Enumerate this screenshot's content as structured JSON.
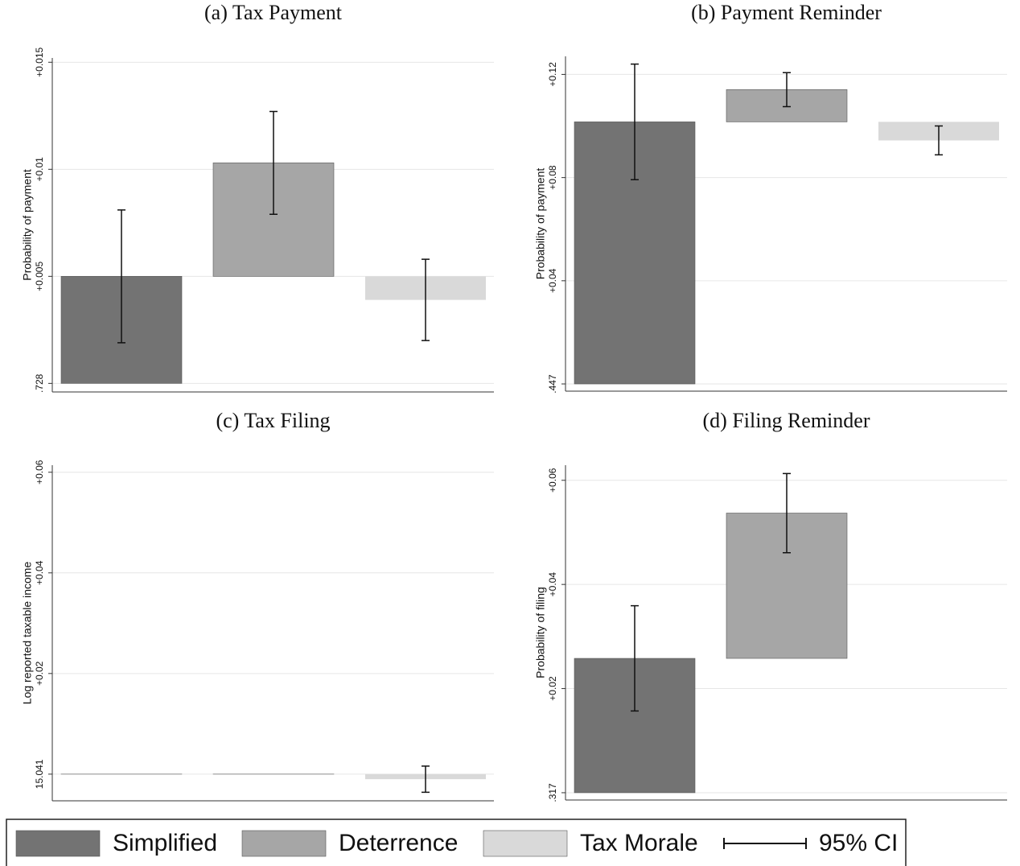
{
  "chart_data": [
    {
      "type": "bar",
      "title": "(a) Tax Payment",
      "y_label": "Probability of payment",
      "values": [
        0.005,
        0.0053,
        -0.0011
      ],
      "errors": [
        0.0031,
        0.0024,
        0.0019
      ],
      "ylim": [
        -0.0004,
        0.0152
      ],
      "yticks": [
        {
          "value": 0,
          "label": ".728"
        },
        {
          "value": 0.005,
          "label": "+0.005"
        },
        {
          "value": 0.01,
          "label": "+0.01"
        },
        {
          "value": 0.015,
          "label": "+0.015"
        }
      ],
      "grid": true
    },
    {
      "type": "bar",
      "title": "(b) Payment Reminder",
      "y_label": "Probability of payment",
      "values": [
        0.1016,
        0.0125,
        -0.0072
      ],
      "errors": [
        0.0224,
        0.0066,
        0.0056
      ],
      "ylim": [
        -0.0028,
        0.127
      ],
      "yticks": [
        {
          "value": 0,
          "label": ".447"
        },
        {
          "value": 0.04,
          "label": "+0.04"
        },
        {
          "value": 0.08,
          "label": "+0.08"
        },
        {
          "value": 0.12,
          "label": "+0.12"
        }
      ],
      "grid": true
    },
    {
      "type": "bar",
      "title": "(c) Tax Filing",
      "y_label": "Log reported taxable income",
      "values": [
        0,
        0,
        -0.001
      ],
      "errors": [
        null,
        null,
        0.0026
      ],
      "ylim": [
        -0.0053,
        0.0614
      ],
      "yticks": [
        {
          "value": 0,
          "label": "15.041"
        },
        {
          "value": 0.02,
          "label": "+0.02"
        },
        {
          "value": 0.04,
          "label": "+0.04"
        },
        {
          "value": 0.06,
          "label": "+0.06"
        }
      ],
      "grid": true
    },
    {
      "type": "bar",
      "title": "(d) Filing Reminder",
      "y_label": "Probability of filing",
      "values": [
        0.0258,
        0.0279,
        null
      ],
      "errors": [
        0.0101,
        0.0076,
        null
      ],
      "ylim": [
        -0.0014,
        0.0629
      ],
      "yticks": [
        {
          "value": 0,
          "label": ".317"
        },
        {
          "value": 0.02,
          "label": "+0.02"
        },
        {
          "value": 0.04,
          "label": "+0.04"
        },
        {
          "value": 0.06,
          "label": "+0.06"
        }
      ],
      "grid": true
    }
  ],
  "legend": {
    "labels": [
      "Simplified",
      "Deterrence",
      "Tax Morale"
    ],
    "colors": [
      "#737373",
      "#a6a6a6",
      "#d9d9d9"
    ],
    "ci_label": "95% CI"
  }
}
